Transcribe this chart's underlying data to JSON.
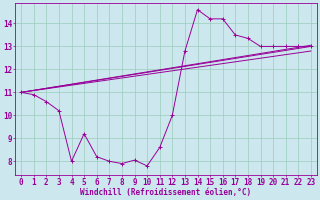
{
  "bg_color": "#cce8ee",
  "line_color": "#990099",
  "grid_color": "#99ccbb",
  "xlabel": "Windchill (Refroidissement éolien,°C)",
  "xlabel_fontsize": 5.5,
  "tick_fontsize": 5.5,
  "ylabel_ticks": [
    8,
    9,
    10,
    11,
    12,
    13,
    14
  ],
  "xlabel_ticks": [
    0,
    1,
    2,
    3,
    4,
    5,
    6,
    7,
    8,
    9,
    10,
    11,
    12,
    13,
    14,
    15,
    16,
    17,
    18,
    19,
    20,
    21,
    22,
    23
  ],
  "xlim": [
    -0.5,
    23.5
  ],
  "ylim": [
    7.4,
    14.9
  ],
  "main_line_x": [
    0,
    1,
    2,
    3,
    4,
    5,
    6,
    7,
    8,
    9,
    10,
    11,
    12,
    13,
    14,
    15,
    16,
    17,
    18,
    19,
    20,
    21,
    22,
    23
  ],
  "main_line_y": [
    11.0,
    10.9,
    10.6,
    10.2,
    8.0,
    9.2,
    8.2,
    8.0,
    7.9,
    8.05,
    7.8,
    8.6,
    10.0,
    12.8,
    14.6,
    14.2,
    14.2,
    13.5,
    13.35,
    13.0,
    13.0,
    13.0,
    13.0,
    13.0
  ],
  "trend1_x0": 0,
  "trend1_y0": 11.0,
  "trend1_x1": 23,
  "trend1_y1": 13.05,
  "trend2_x0": 0,
  "trend2_y0": 11.0,
  "trend2_x1": 23,
  "trend2_y1": 12.8,
  "trend3_x0": 0,
  "trend3_y0": 11.0,
  "trend3_x1": 23,
  "trend3_y1": 13.0
}
